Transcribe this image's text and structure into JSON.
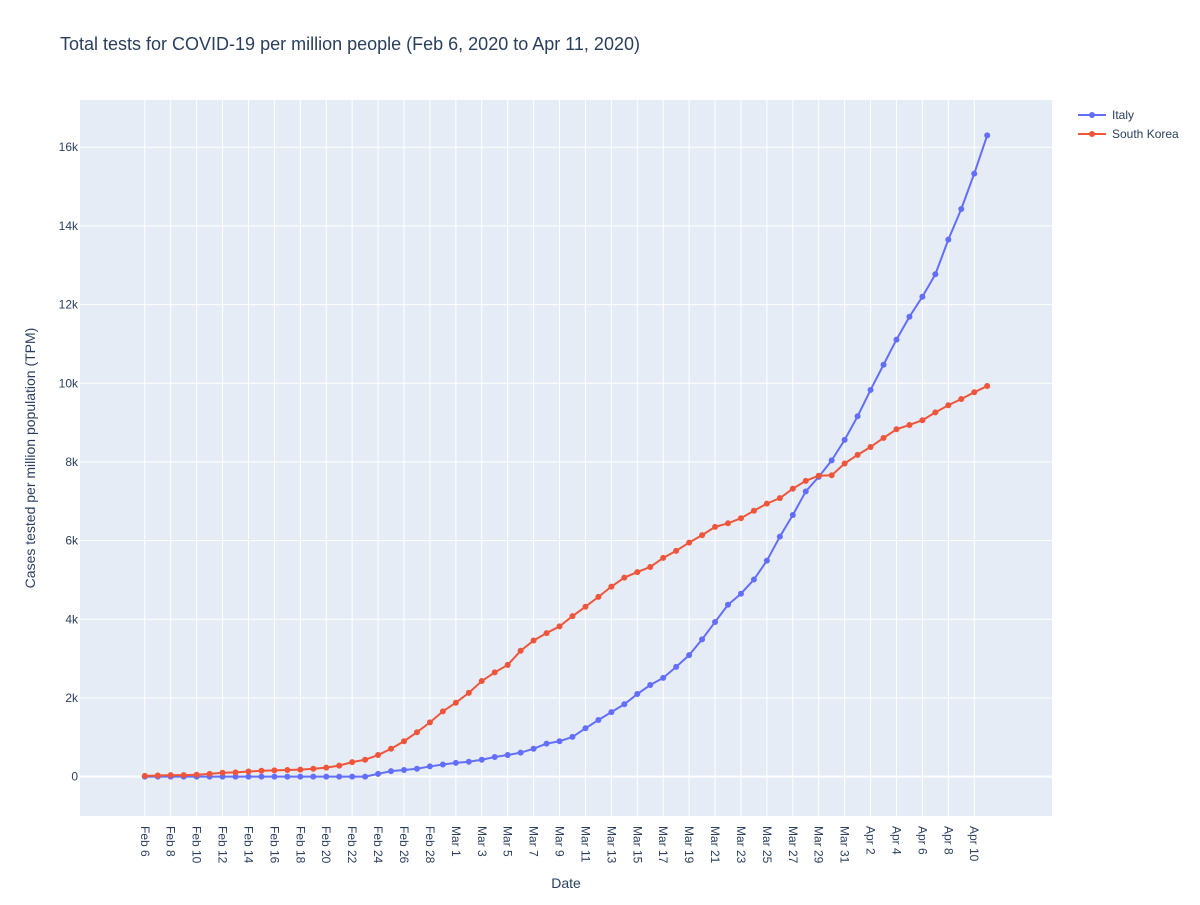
{
  "chart_data": {
    "type": "line",
    "title": "Total tests for COVID-19 per million people (Feb 6, 2020 to Apr 11, 2020)",
    "xlabel": "Date",
    "ylabel": "Cases tested per million population (TPM)",
    "x_start": "2020-02-06",
    "xlim": [
      "2020-02-01",
      "2020-04-16"
    ],
    "ylim": [
      -1000,
      17200
    ],
    "x_tick_labels": [
      "Feb 6",
      "Feb 8",
      "Feb 10",
      "Feb 12",
      "Feb 14",
      "Feb 16",
      "Feb 18",
      "Feb 20",
      "Feb 22",
      "Feb 24",
      "Feb 26",
      "Feb 28",
      "Mar 1",
      "Mar 3",
      "Mar 5",
      "Mar 7",
      "Mar 9",
      "Mar 11",
      "Mar 13",
      "Mar 15",
      "Mar 17",
      "Mar 19",
      "Mar 21",
      "Mar 23",
      "Mar 25",
      "Mar 27",
      "Mar 29",
      "Mar 31",
      "Apr 2",
      "Apr 4",
      "Apr 6",
      "Apr 8",
      "Apr 10"
    ],
    "y_ticks": [
      0,
      2000,
      4000,
      6000,
      8000,
      10000,
      12000,
      14000,
      16000
    ],
    "y_tick_labels": [
      "0",
      "2k",
      "4k",
      "6k",
      "8k",
      "10k",
      "12k",
      "14k",
      "16k"
    ],
    "grid": true,
    "legend_position": "top-right",
    "series": [
      {
        "name": "Italy",
        "color": "#636efa",
        "values": [
          0,
          0,
          0,
          0,
          0,
          0,
          0,
          0,
          0,
          0,
          0,
          0,
          0,
          0,
          0,
          0,
          0,
          0,
          70,
          140,
          170,
          200,
          260,
          310,
          350,
          380,
          430,
          500,
          550,
          610,
          710,
          840,
          900,
          1010,
          1230,
          1440,
          1640,
          1840,
          2100,
          2330,
          2510,
          2790,
          3090,
          3490,
          3930,
          4370,
          4650,
          5010,
          5490,
          6100,
          6650,
          7250,
          7620,
          8040,
          8560,
          9160,
          9830,
          10470,
          11110,
          11690,
          12200,
          12770,
          13650,
          14430,
          15330,
          16300
        ]
      },
      {
        "name": "South Korea",
        "color": "#ef553b",
        "values": [
          20,
          30,
          40,
          40,
          50,
          70,
          100,
          110,
          130,
          150,
          160,
          170,
          180,
          200,
          230,
          280,
          370,
          430,
          550,
          710,
          900,
          1130,
          1380,
          1660,
          1880,
          2130,
          2430,
          2650,
          2840,
          3200,
          3460,
          3650,
          3820,
          4080,
          4320,
          4570,
          4830,
          5060,
          5200,
          5330,
          5560,
          5740,
          5950,
          6140,
          6350,
          6440,
          6570,
          6760,
          6940,
          7080,
          7320,
          7520,
          7650,
          7660,
          7960,
          8180,
          8380,
          8610,
          8830,
          8940,
          9060,
          9260,
          9440,
          9600,
          9770,
          9930
        ]
      }
    ]
  }
}
